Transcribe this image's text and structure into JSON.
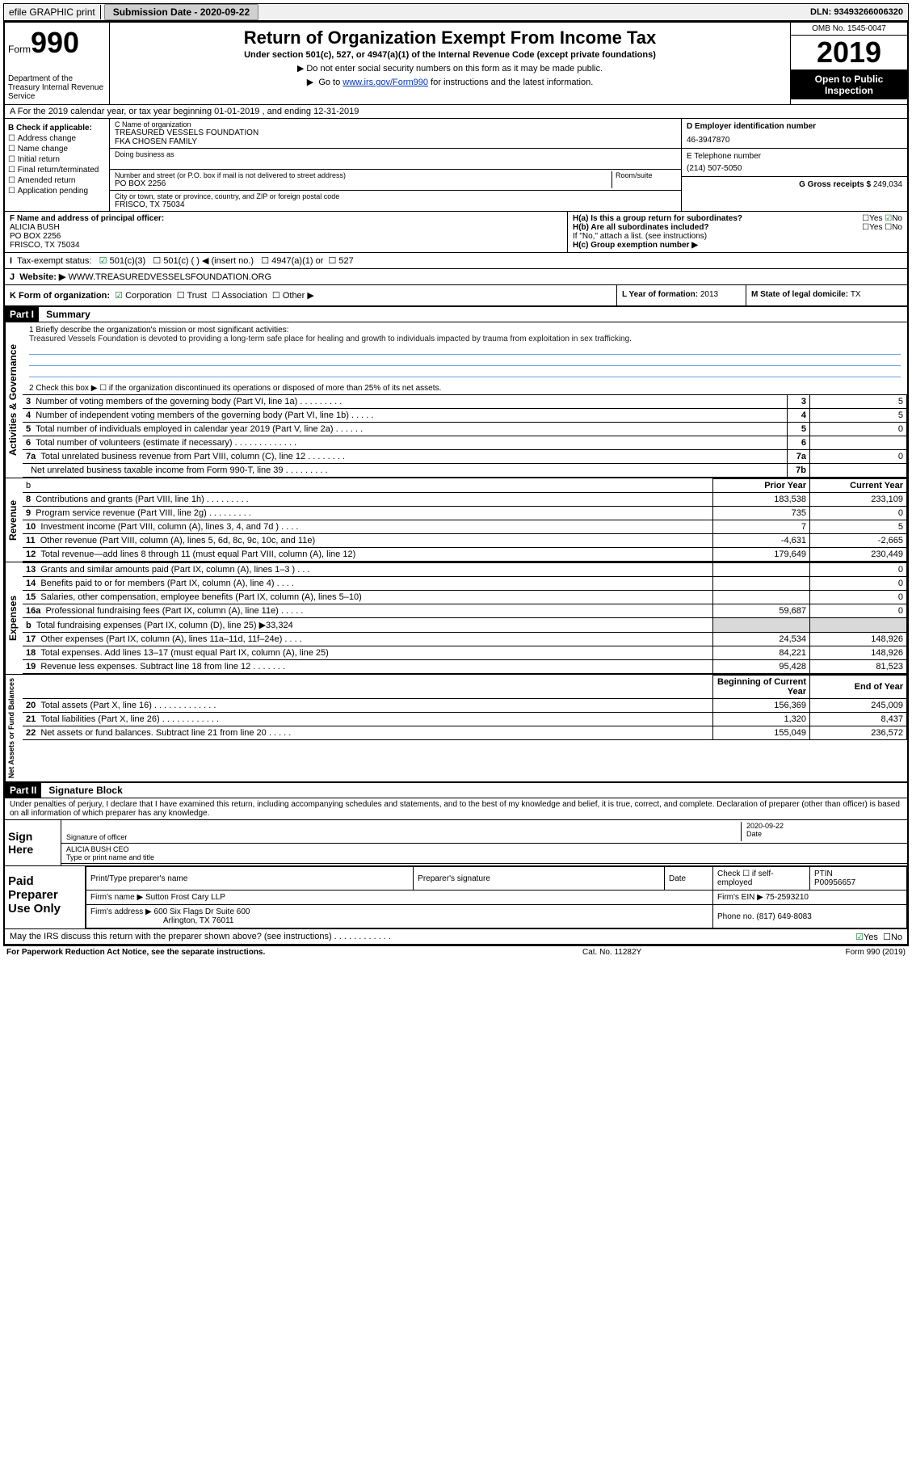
{
  "topbar": {
    "efile": "efile GRAPHIC print",
    "submission_label": "Submission Date - ",
    "submission_date": "2020-09-22",
    "dln_label": "DLN: ",
    "dln": "93493266006320"
  },
  "header": {
    "form_word": "Form",
    "form_num": "990",
    "dept": "Department of the Treasury\nInternal Revenue Service",
    "title": "Return of Organization Exempt From Income Tax",
    "sub": "Under section 501(c), 527, or 4947(a)(1) of the Internal Revenue Code (except private foundations)",
    "note1": "Do not enter social security numbers on this form as it may be made public.",
    "note2_pre": "Go to ",
    "note2_link": "www.irs.gov/Form990",
    "note2_post": " for instructions and the latest information.",
    "omb": "OMB No. 1545-0047",
    "year": "2019",
    "open": "Open to Public Inspection"
  },
  "rowA": "A For the 2019 calendar year, or tax year beginning 01-01-2019    , and ending 12-31-2019",
  "secB": {
    "title": "B Check if applicable:",
    "items": [
      "Address change",
      "Name change",
      "Initial return",
      "Final return/terminated",
      "Amended return",
      "Application pending"
    ],
    "c_lbl": "C Name of organization",
    "c_name": "TREASURED VESSELS FOUNDATION",
    "c_fka": "FKA CHOSEN FAMILY",
    "dba_lbl": "Doing business as",
    "addr_lbl": "Number and street (or P.O. box if mail is not delivered to street address)",
    "room_lbl": "Room/suite",
    "addr": "PO BOX 2256",
    "city_lbl": "City or town, state or province, country, and ZIP or foreign postal code",
    "city": "FRISCO, TX  75034",
    "d_lbl": "D Employer identification number",
    "d_val": "46-3947870",
    "e_lbl": "E Telephone number",
    "e_val": "(214) 507-5050",
    "g_lbl": "G Gross receipts $ ",
    "g_val": "249,034"
  },
  "secFH": {
    "f_lbl": "F  Name and address of principal officer:",
    "f_name": "ALICIA BUSH",
    "f_addr1": "PO BOX 2256",
    "f_addr2": "FRISCO, TX  75034",
    "ha": "H(a)  Is this a group return for subordinates?",
    "hb": "H(b)  Are all subordinates included?",
    "hb_note": "If \"No,\" attach a list. (see instructions)",
    "hc": "H(c)  Group exemption number ▶",
    "yes": "Yes",
    "no": "No"
  },
  "taxrow": {
    "lbl": "Tax-exempt status:",
    "c501c3": "501(c)(3)",
    "c501c": "501(c) (  ) ◀ (insert no.)",
    "c4947": "4947(a)(1) or",
    "c527": "527"
  },
  "web": {
    "lbl": "Website: ▶ ",
    "val": "WWW.TREASUREDVESSELSFOUNDATION.ORG"
  },
  "korg": {
    "k": "K Form of organization:",
    "corp": "Corporation",
    "trust": "Trust",
    "assoc": "Association",
    "other": "Other ▶",
    "l": "L Year of formation: ",
    "l_val": "2013",
    "m": "M State of legal domicile: ",
    "m_val": "TX"
  },
  "part1": {
    "hdr": "Part I",
    "title": "Summary",
    "mission_lbl": "1   Briefly describe the organization's mission or most significant activities:",
    "mission": "Treasured Vessels Foundation is devoted to providing a long-term safe place for healing and growth to individuals impacted by trauma from exploitation in sex trafficking.",
    "line2": "2   Check this box ▶ ☐  if the organization discontinued its operations or disposed of more than 25% of its net assets.",
    "rows_gov": [
      {
        "n": "3",
        "d": "Number of voting members of the governing body (Part VI, line 1a)  .  .  .  .  .  .  .  .  .",
        "box": "3",
        "v": "5"
      },
      {
        "n": "4",
        "d": "Number of independent voting members of the governing body (Part VI, line 1b)  .  .  .  .  .",
        "box": "4",
        "v": "5"
      },
      {
        "n": "5",
        "d": "Total number of individuals employed in calendar year 2019 (Part V, line 2a)  .  .  .  .  .  .",
        "box": "5",
        "v": "0"
      },
      {
        "n": "6",
        "d": "Total number of volunteers (estimate if necessary)   .  .  .  .  .  .  .  .  .  .  .  .  .",
        "box": "6",
        "v": ""
      },
      {
        "n": "7a",
        "d": "Total unrelated business revenue from Part VIII, column (C), line 12  .  .  .  .  .  .  .  .",
        "box": "7a",
        "v": "0"
      },
      {
        "n": "",
        "d": "Net unrelated business taxable income from Form 990-T, line 39   .  .  .  .  .  .  .  .  .",
        "box": "7b",
        "v": ""
      }
    ],
    "prior_hdr": "Prior Year",
    "curr_hdr": "Current Year",
    "rows_rev": [
      {
        "n": "8",
        "d": "Contributions and grants (Part VIII, line 1h)   .  .  .  .  .  .  .  .  .",
        "p": "183,538",
        "c": "233,109"
      },
      {
        "n": "9",
        "d": "Program service revenue (Part VIII, line 2g)   .  .  .  .  .  .  .  .  .",
        "p": "735",
        "c": "0"
      },
      {
        "n": "10",
        "d": "Investment income (Part VIII, column (A), lines 3, 4, and 7d )   .  .  .  .",
        "p": "7",
        "c": "5"
      },
      {
        "n": "11",
        "d": "Other revenue (Part VIII, column (A), lines 5, 6d, 8c, 9c, 10c, and 11e)",
        "p": "-4,631",
        "c": "-2,665"
      },
      {
        "n": "12",
        "d": "Total revenue—add lines 8 through 11 (must equal Part VIII, column (A), line 12)",
        "p": "179,649",
        "c": "230,449"
      }
    ],
    "rows_exp": [
      {
        "n": "13",
        "d": "Grants and similar amounts paid (Part IX, column (A), lines 1–3 )  .  .  .",
        "p": "",
        "c": "0"
      },
      {
        "n": "14",
        "d": "Benefits paid to or for members (Part IX, column (A), line 4)   .  .  .  .",
        "p": "",
        "c": "0"
      },
      {
        "n": "15",
        "d": "Salaries, other compensation, employee benefits (Part IX, column (A), lines 5–10)",
        "p": "",
        "c": "0"
      },
      {
        "n": "16a",
        "d": "Professional fundraising fees (Part IX, column (A), line 11e)  .  .  .  .  .",
        "p": "59,687",
        "c": "0"
      },
      {
        "n": "b",
        "d": "Total fundraising expenses (Part IX, column (D), line 25) ▶33,324",
        "p": "SHADE",
        "c": "SHADE"
      },
      {
        "n": "17",
        "d": "Other expenses (Part IX, column (A), lines 11a–11d, 11f–24e)   .  .  .  .",
        "p": "24,534",
        "c": "148,926"
      },
      {
        "n": "18",
        "d": "Total expenses. Add lines 13–17 (must equal Part IX, column (A), line 25)",
        "p": "84,221",
        "c": "148,926"
      },
      {
        "n": "19",
        "d": "Revenue less expenses. Subtract line 18 from line 12  .  .  .  .  .  .  .",
        "p": "95,428",
        "c": "81,523"
      }
    ],
    "begin_hdr": "Beginning of Current Year",
    "end_hdr": "End of Year",
    "rows_net": [
      {
        "n": "20",
        "d": "Total assets (Part X, line 16)  .  .  .  .  .  .  .  .  .  .  .  .  .",
        "p": "156,369",
        "c": "245,009"
      },
      {
        "n": "21",
        "d": "Total liabilities (Part X, line 26)   .  .  .  .  .  .  .  .  .  .  .  .",
        "p": "1,320",
        "c": "8,437"
      },
      {
        "n": "22",
        "d": "Net assets or fund balances. Subtract line 21 from line 20   .  .  .  .  .",
        "p": "155,049",
        "c": "236,572"
      }
    ],
    "side_gov": "Activities & Governance",
    "side_rev": "Revenue",
    "side_exp": "Expenses",
    "side_net": "Net Assets or Fund Balances"
  },
  "part2": {
    "hdr": "Part II",
    "title": "Signature Block",
    "decl": "Under penalties of perjury, I declare that I have examined this return, including accompanying schedules and statements, and to the best of my knowledge and belief, it is true, correct, and complete. Declaration of preparer (other than officer) is based on all information of which preparer has any knowledge.",
    "sign_here": "Sign Here",
    "sig_officer": "Signature of officer",
    "sig_date": "Date",
    "sig_date_val": "2020-09-22",
    "sig_name": "ALICIA BUSH  CEO",
    "sig_type": "Type or print name and title",
    "paid": "Paid Preparer Use Only",
    "prep_name_lbl": "Print/Type preparer's name",
    "prep_sig_lbl": "Preparer's signature",
    "prep_date_lbl": "Date",
    "prep_check": "Check ☐ if self-employed",
    "ptin_lbl": "PTIN",
    "ptin": "P00956657",
    "firm_name_lbl": "Firm's name    ▶ ",
    "firm_name": "Sutton Frost Cary LLP",
    "firm_ein_lbl": "Firm's EIN ▶ ",
    "firm_ein": "75-2593210",
    "firm_addr_lbl": "Firm's address ▶ ",
    "firm_addr1": "600 Six Flags Dr Suite 600",
    "firm_addr2": "Arlington, TX  76011",
    "phone_lbl": "Phone no. ",
    "phone": "(817) 649-8083",
    "discuss": "May the IRS discuss this return with the preparer shown above? (see instructions)   .  .  .  .  .  .  .  .  .  .  .  .",
    "yes": "Yes",
    "no": "No"
  },
  "footer": {
    "l": "For Paperwork Reduction Act Notice, see the separate instructions.",
    "m": "Cat. No. 11282Y",
    "r": "Form 990 (2019)"
  },
  "colors": {
    "link": "#0033cc",
    "check": "#0a7a2a",
    "underline": "#6aa0d8",
    "shade": "#d9d9d9"
  }
}
